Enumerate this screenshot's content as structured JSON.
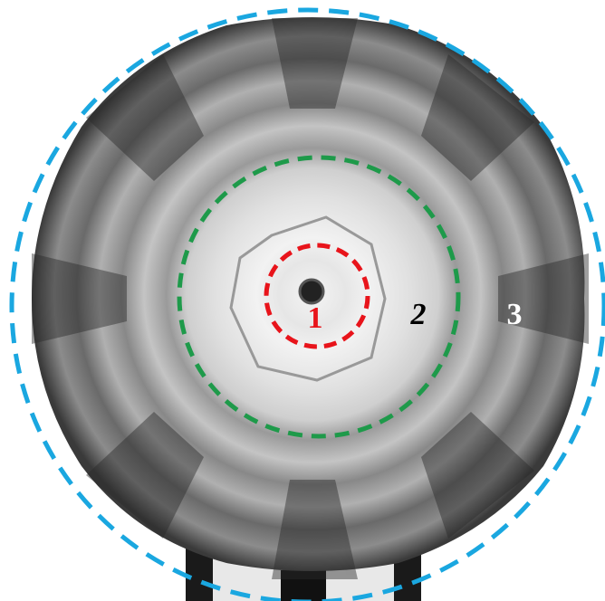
{
  "annotations": [
    {
      "label": "1"
    },
    {
      "label": "2"
    },
    {
      "label": "3"
    }
  ]
}
